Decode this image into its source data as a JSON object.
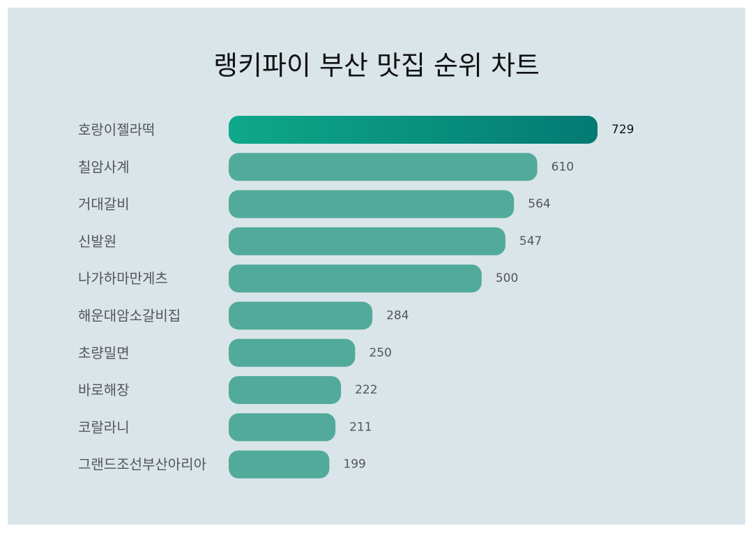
{
  "chart_data": {
    "type": "bar",
    "orientation": "horizontal",
    "title": "랭키파이 부산 맛집 순위 차트",
    "categories": [
      "호랑이젤라떡",
      "칠암사계",
      "거대갈비",
      "신발원",
      "나가하마만게츠",
      "해운대암소갈비집",
      "초량밀면",
      "바로해장",
      "코랄라니",
      "그랜드조선부산아리아"
    ],
    "values": [
      729,
      610,
      564,
      547,
      500,
      284,
      250,
      222,
      211,
      199
    ],
    "xlim": [
      0,
      729
    ],
    "grid": false,
    "legend": "none"
  },
  "colors": {
    "panel_background": "#dae5ea",
    "bar": "#52ab9a",
    "top_bar_gradient_start": "#0ea88a",
    "top_bar_gradient_end": "#037a73",
    "title_text": "#111111",
    "label_text": "#555555"
  }
}
